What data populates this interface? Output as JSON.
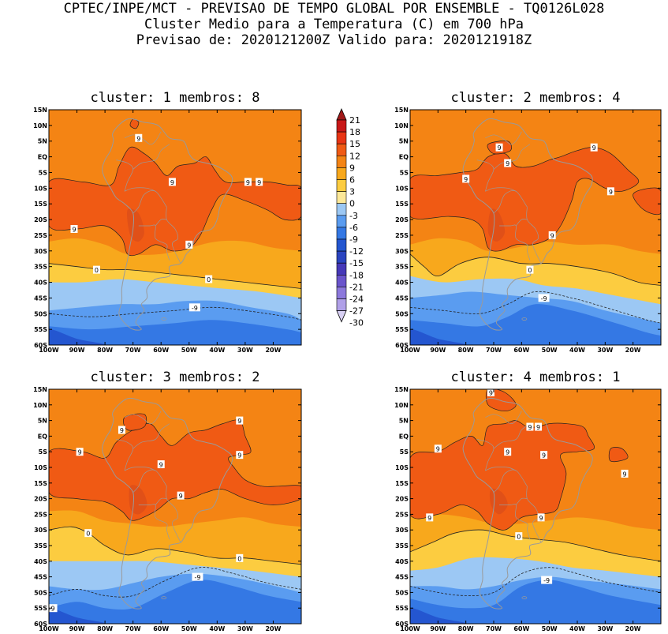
{
  "header": {
    "line1": "CPTEC/INPE/MCT - PREVISAO DE TEMPO GLOBAL POR ENSEMBLE - TQ0126L028",
    "line2": "Cluster Medio para a Temperatura (C) em 700 hPa",
    "line3": "Previsao de: 2020121200Z   Valido para: 2020121918Z"
  },
  "colorbar": {
    "levels": [
      "21",
      "18",
      "15",
      "12",
      "9",
      "6",
      "3",
      "0",
      "-3",
      "-6",
      "-9",
      "-12",
      "-15",
      "-18",
      "-21",
      "-24",
      "-27",
      "-30"
    ],
    "colors": [
      "#a01818",
      "#c81818",
      "#e83414",
      "#f05a14",
      "#f48414",
      "#f8a81c",
      "#fccc40",
      "#fce898",
      "#9cc8f4",
      "#5a9cf0",
      "#3478e4",
      "#2456d0",
      "#2a44c0",
      "#4638b8",
      "#6a54cc",
      "#8c78dc",
      "#b0a0e8",
      "#d8d0f4"
    ]
  },
  "axes": {
    "lat_labels": [
      "15N",
      "10N",
      "5N",
      "EQ",
      "5S",
      "10S",
      "15S",
      "20S",
      "25S",
      "30S",
      "35S",
      "40S",
      "45S",
      "50S",
      "55S",
      "60S"
    ],
    "lon_labels": [
      "100W",
      "90W",
      "80W",
      "70W",
      "60W",
      "50W",
      "40W",
      "30W",
      "20W"
    ]
  },
  "panels": [
    {
      "title": "cluster: 1   membros: 8",
      "contour_labels": [
        {
          "text": "9",
          "lon": -68,
          "lat": 6
        },
        {
          "text": "9",
          "lon": -56,
          "lat": -8
        },
        {
          "text": "9",
          "lon": -29,
          "lat": -8
        },
        {
          "text": "9",
          "lon": -25,
          "lat": -8
        },
        {
          "text": "9",
          "lon": -91,
          "lat": -23
        },
        {
          "text": "9",
          "lon": -50,
          "lat": -28
        },
        {
          "text": "0",
          "lon": -83,
          "lat": -36
        },
        {
          "text": "0",
          "lon": -43,
          "lat": -39
        },
        {
          "text": "-9",
          "lon": -48,
          "lat": -48
        }
      ]
    },
    {
      "title": "cluster: 2   membros: 4",
      "contour_labels": [
        {
          "text": "9",
          "lon": -68,
          "lat": 3
        },
        {
          "text": "9",
          "lon": -34,
          "lat": 3
        },
        {
          "text": "9",
          "lon": -65,
          "lat": -2
        },
        {
          "text": "9",
          "lon": -80,
          "lat": -7
        },
        {
          "text": "9",
          "lon": -28,
          "lat": -11
        },
        {
          "text": "9",
          "lon": -49,
          "lat": -25
        },
        {
          "text": "0",
          "lon": -57,
          "lat": -36
        },
        {
          "text": "-9",
          "lon": -52,
          "lat": -45
        }
      ]
    },
    {
      "title": "cluster: 3   membros: 2",
      "contour_labels": [
        {
          "text": "9",
          "lon": -74,
          "lat": 2
        },
        {
          "text": "9",
          "lon": -32,
          "lat": 5
        },
        {
          "text": "9",
          "lon": -89,
          "lat": -5
        },
        {
          "text": "9",
          "lon": -32,
          "lat": -6
        },
        {
          "text": "9",
          "lon": -60,
          "lat": -9
        },
        {
          "text": "9",
          "lon": -53,
          "lat": -19
        },
        {
          "text": "0",
          "lon": -86,
          "lat": -31
        },
        {
          "text": "0",
          "lon": -32,
          "lat": -39
        },
        {
          "text": "-9",
          "lon": -47,
          "lat": -45
        },
        {
          "text": "-9",
          "lon": -99,
          "lat": -55
        }
      ]
    },
    {
      "title": "cluster: 4   membros: 1",
      "contour_labels": [
        {
          "text": "9",
          "lon": -71,
          "lat": 14
        },
        {
          "text": "9",
          "lon": -57,
          "lat": 3
        },
        {
          "text": "9",
          "lon": -54,
          "lat": 3
        },
        {
          "text": "9",
          "lon": -90,
          "lat": -4
        },
        {
          "text": "9",
          "lon": -65,
          "lat": -5
        },
        {
          "text": "9",
          "lon": -52,
          "lat": -6
        },
        {
          "text": "9",
          "lon": -23,
          "lat": -12
        },
        {
          "text": "9",
          "lon": -93,
          "lat": -26
        },
        {
          "text": "9",
          "lon": -53,
          "lat": -26
        },
        {
          "text": "0",
          "lon": -61,
          "lat": -32
        },
        {
          "text": "-9",
          "lon": -51,
          "lat": -46
        }
      ]
    }
  ]
}
